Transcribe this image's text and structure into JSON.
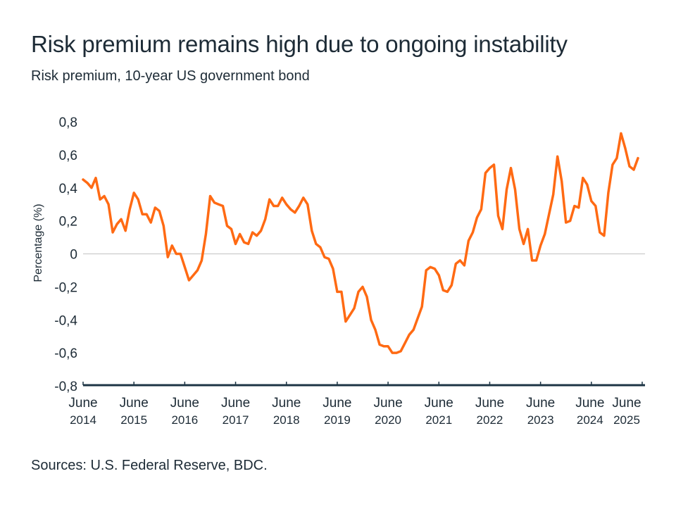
{
  "header": {
    "title": "Risk premium remains high due to ongoing instability",
    "subtitle": "Risk premium, 10-year US government bond"
  },
  "footer": {
    "source": "Sources: U.S. Federal Reserve, BDC."
  },
  "colors": {
    "line": "#ff6a13",
    "axis": "#1d3545",
    "zero_line": "#cccccc",
    "text": "#1d2b36"
  },
  "chart_data": {
    "type": "line",
    "title": "Risk premium remains high due to ongoing instability",
    "subtitle": "Risk premium, 10-year US government bond",
    "xlabel": "",
    "ylabel": "Percentage (%)",
    "ylim": [
      -0.8,
      0.8
    ],
    "yticks": [
      0.8,
      0.6,
      0.4,
      0.2,
      0,
      -0.2,
      -0.4,
      -0.6,
      -0.8
    ],
    "ytick_labels": [
      "0,8",
      "0,6",
      "0,4",
      "0,2",
      "0",
      "-0,2",
      "-0,4",
      "-0,6",
      "-0,8"
    ],
    "x_start": "June 2014",
    "x_end": "June 2025",
    "x_unit": "monthly",
    "xticks": [
      {
        "line1": "June",
        "line2": "2014"
      },
      {
        "line1": "June",
        "line2": "2015"
      },
      {
        "line1": "June",
        "line2": "2016"
      },
      {
        "line1": "June",
        "line2": "2017"
      },
      {
        "line1": "June",
        "line2": "2018"
      },
      {
        "line1": "June",
        "line2": "2019"
      },
      {
        "line1": "June",
        "line2": "2020"
      },
      {
        "line1": "June",
        "line2": "2021"
      },
      {
        "line1": "June",
        "line2": "2022"
      },
      {
        "line1": "June",
        "line2": "2023"
      },
      {
        "line1": "June",
        "line2": "2024"
      },
      {
        "line1": "June",
        "line2": "2025"
      }
    ],
    "grid": false,
    "zero_line": true,
    "legend": "none",
    "series": [
      {
        "name": "Risk premium",
        "values": [
          0.45,
          0.43,
          0.4,
          0.46,
          0.33,
          0.35,
          0.3,
          0.13,
          0.18,
          0.21,
          0.14,
          0.27,
          0.37,
          0.33,
          0.24,
          0.24,
          0.19,
          0.28,
          0.26,
          0.17,
          -0.02,
          0.05,
          0.0,
          0.0,
          -0.08,
          -0.16,
          -0.13,
          -0.1,
          -0.04,
          0.12,
          0.35,
          0.31,
          0.3,
          0.29,
          0.17,
          0.15,
          0.06,
          0.12,
          0.07,
          0.06,
          0.13,
          0.11,
          0.14,
          0.21,
          0.33,
          0.29,
          0.29,
          0.34,
          0.3,
          0.27,
          0.25,
          0.29,
          0.34,
          0.3,
          0.14,
          0.06,
          0.04,
          -0.02,
          -0.03,
          -0.09,
          -0.23,
          -0.23,
          -0.41,
          -0.37,
          -0.33,
          -0.23,
          -0.2,
          -0.26,
          -0.4,
          -0.46,
          -0.55,
          -0.56,
          -0.56,
          -0.6,
          -0.6,
          -0.59,
          -0.54,
          -0.49,
          -0.46,
          -0.39,
          -0.32,
          -0.1,
          -0.08,
          -0.09,
          -0.13,
          -0.22,
          -0.23,
          -0.19,
          -0.06,
          -0.04,
          -0.07,
          0.08,
          0.13,
          0.22,
          0.27,
          0.49,
          0.52,
          0.54,
          0.23,
          0.15,
          0.39,
          0.52,
          0.39,
          0.15,
          0.06,
          0.15,
          -0.04,
          -0.04,
          0.05,
          0.12,
          0.24,
          0.36,
          0.59,
          0.44,
          0.19,
          0.2,
          0.29,
          0.28,
          0.46,
          0.42,
          0.32,
          0.29,
          0.13,
          0.11,
          0.37,
          0.54,
          0.58,
          0.73,
          0.64,
          0.53,
          0.51,
          0.58
        ]
      }
    ]
  }
}
